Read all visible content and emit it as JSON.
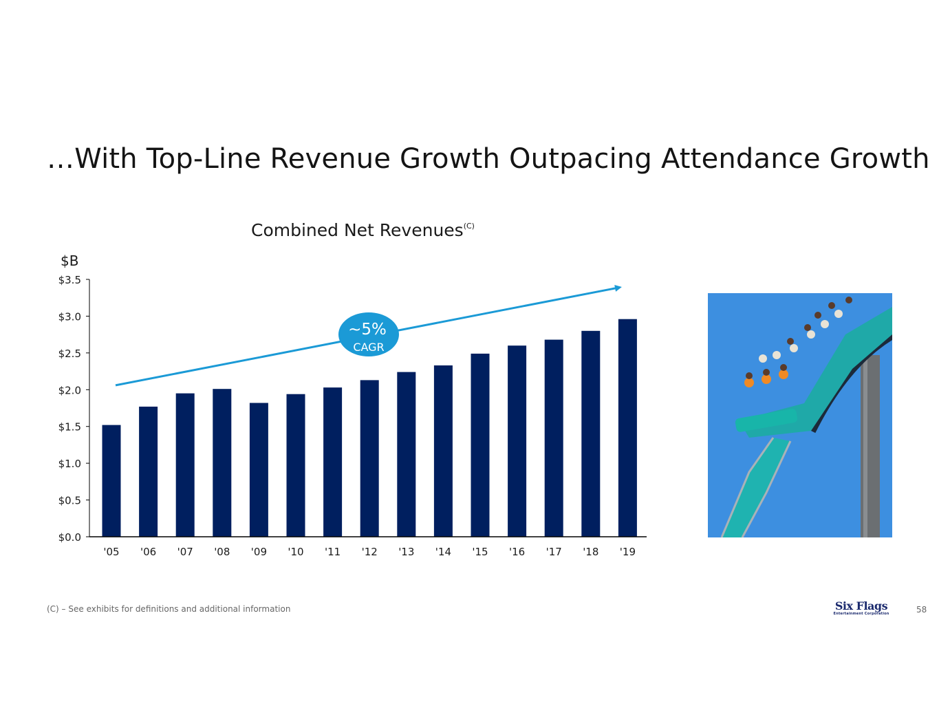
{
  "slide": {
    "title": "…With Top-Line Revenue Growth Outpacing Attendance Growth",
    "footnote": "(C) – See exhibits for definitions and additional information",
    "page_number": "58",
    "logo": {
      "name": "Six Flags",
      "subtitle": "Entertainment Corporation"
    }
  },
  "chart_data": {
    "type": "bar",
    "title": "Combined Net Revenues",
    "title_superscript": "(C)",
    "ylabel": "$B",
    "xlabel": "",
    "categories": [
      "'05",
      "'06",
      "'07",
      "'08",
      "'09",
      "'10",
      "'11",
      "'12",
      "'13",
      "'14",
      "'15",
      "'16",
      "'17",
      "'18",
      "'19"
    ],
    "values": [
      1.52,
      1.77,
      1.95,
      2.01,
      1.82,
      1.94,
      2.03,
      2.13,
      2.24,
      2.33,
      2.49,
      2.6,
      2.68,
      2.8,
      2.96
    ],
    "ylim": [
      0,
      3.5
    ],
    "yticks": [
      "$0.0",
      "$0.5",
      "$1.0",
      "$1.5",
      "$2.0",
      "$2.5",
      "$3.0",
      "$3.5"
    ],
    "ytick_values": [
      0,
      0.5,
      1.0,
      1.5,
      2.0,
      2.5,
      3.0,
      3.5
    ],
    "grid": false,
    "bar_color": "#001f5f",
    "trend_arrow": {
      "color": "#1b9ad6",
      "start_value": 2.06,
      "end_value": 3.39
    },
    "annotation": {
      "value": "~5%",
      "label": "CAGR",
      "color": "#1b9ad6"
    }
  }
}
